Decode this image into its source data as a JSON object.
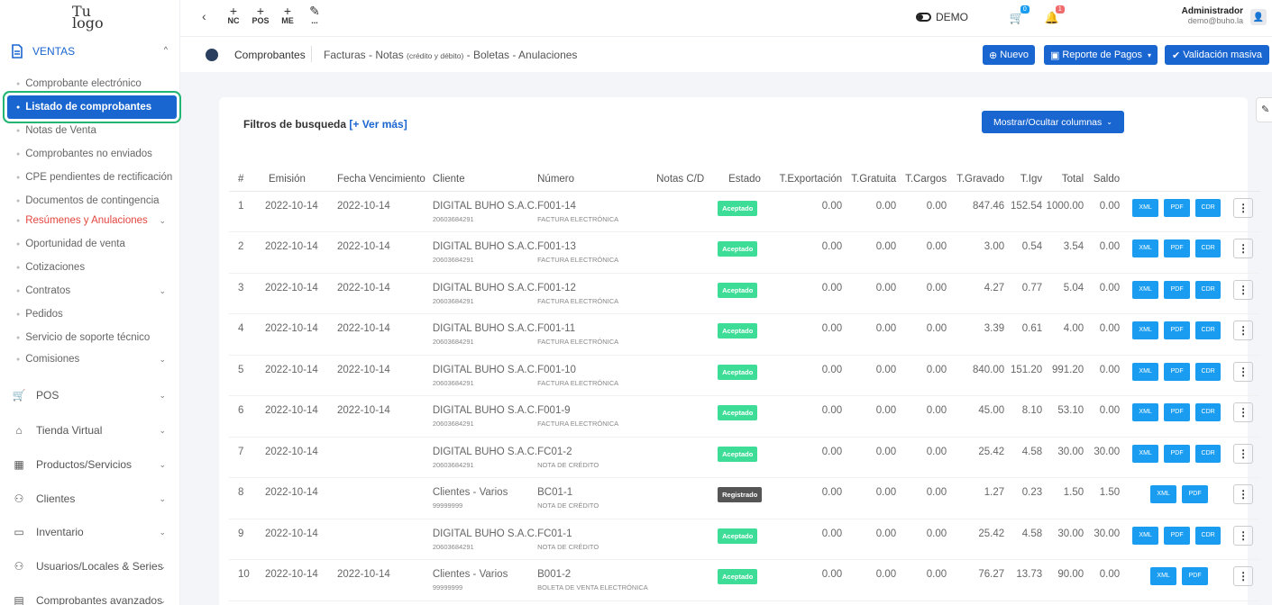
{
  "logo": {
    "line1": "Tu",
    "line2": "logo"
  },
  "sidebar": {
    "ventas_label": "VENTAS",
    "subitems": [
      {
        "label": "Comprobante electrónico",
        "active": false
      },
      {
        "label": "Listado de comprobantes",
        "active": true
      },
      {
        "label": "Notas de Venta",
        "active": false
      },
      {
        "label": "Comprobantes no enviados",
        "active": false
      },
      {
        "label": "CPE pendientes de rectificación",
        "active": false
      },
      {
        "label": "Documentos de contingencia",
        "active": false
      },
      {
        "label": "Resúmenes y Anulaciones",
        "active": false
      },
      {
        "label": "Oportunidad de venta",
        "active": false
      },
      {
        "label": "Cotizaciones",
        "active": false
      },
      {
        "label": "Contratos",
        "active": false
      },
      {
        "label": "Pedidos",
        "active": false
      },
      {
        "label": "Servicio de soporte técnico",
        "active": false
      },
      {
        "label": "Comisiones",
        "active": false
      }
    ],
    "nav": [
      "POS",
      "Tienda Virtual",
      "Productos/Servicios",
      "Clientes",
      "Inventario",
      "Usuarios/Locales & Series",
      "Comprobantes avanzados"
    ]
  },
  "topbar": {
    "quick": [
      "NC",
      "POS",
      "ME",
      "..."
    ],
    "demo": "DEMO",
    "cart_count": "0",
    "bell_count": "1",
    "user_name": "Administrador",
    "user_email": "demo@buho.la"
  },
  "breadcrumb": {
    "section": "Comprobantes",
    "path_a": "Facturas - Notas ",
    "path_small": "(crédito y débito)",
    "path_b": " - Boletas - Anulaciones"
  },
  "buttons": {
    "nuevo": "Nuevo",
    "reporte": "Reporte de Pagos",
    "validacion": "Validación masiva",
    "mostrar": "Mostrar/Ocultar columnas"
  },
  "filters": {
    "label": "Filtros de busqueda ",
    "more": "[+ Ver más]"
  },
  "table": {
    "headers": [
      "#",
      "Emisión",
      "Fecha Vencimiento",
      "Cliente",
      "Número",
      "Notas C/D",
      "Estado",
      "T.Exportación",
      "T.Gratuita",
      "T.Cargos",
      "T.Gravado",
      "T.Igv",
      "Total",
      "Saldo"
    ],
    "rows": [
      {
        "n": "1",
        "em": "2022-10-14",
        "ven": "2022-10-14",
        "cli": "DIGITAL BUHO S.A.C.",
        "doc": "20603684291",
        "num": "F001-14",
        "tipo": "FACTURA ELECTRÓNICA",
        "estado": "Aceptado",
        "exp": "0.00",
        "grat": "0.00",
        "car": "0.00",
        "grav": "847.46",
        "igv": "152.54",
        "tot": "1000.00",
        "sal": "0.00",
        "cdr": true
      },
      {
        "n": "2",
        "em": "2022-10-14",
        "ven": "2022-10-14",
        "cli": "DIGITAL BUHO S.A.C.",
        "doc": "20603684291",
        "num": "F001-13",
        "tipo": "FACTURA ELECTRÓNICA",
        "estado": "Aceptado",
        "exp": "0.00",
        "grat": "0.00",
        "car": "0.00",
        "grav": "3.00",
        "igv": "0.54",
        "tot": "3.54",
        "sal": "0.00",
        "cdr": true
      },
      {
        "n": "3",
        "em": "2022-10-14",
        "ven": "2022-10-14",
        "cli": "DIGITAL BUHO S.A.C.",
        "doc": "20603684291",
        "num": "F001-12",
        "tipo": "FACTURA ELECTRÓNICA",
        "estado": "Aceptado",
        "exp": "0.00",
        "grat": "0.00",
        "car": "0.00",
        "grav": "4.27",
        "igv": "0.77",
        "tot": "5.04",
        "sal": "0.00",
        "cdr": true
      },
      {
        "n": "4",
        "em": "2022-10-14",
        "ven": "2022-10-14",
        "cli": "DIGITAL BUHO S.A.C.",
        "doc": "20603684291",
        "num": "F001-11",
        "tipo": "FACTURA ELECTRÓNICA",
        "estado": "Aceptado",
        "exp": "0.00",
        "grat": "0.00",
        "car": "0.00",
        "grav": "3.39",
        "igv": "0.61",
        "tot": "4.00",
        "sal": "0.00",
        "cdr": true
      },
      {
        "n": "5",
        "em": "2022-10-14",
        "ven": "2022-10-14",
        "cli": "DIGITAL BUHO S.A.C.",
        "doc": "20603684291",
        "num": "F001-10",
        "tipo": "FACTURA ELECTRÓNICA",
        "estado": "Aceptado",
        "exp": "0.00",
        "grat": "0.00",
        "car": "0.00",
        "grav": "840.00",
        "igv": "151.20",
        "tot": "991.20",
        "sal": "0.00",
        "cdr": true
      },
      {
        "n": "6",
        "em": "2022-10-14",
        "ven": "2022-10-14",
        "cli": "DIGITAL BUHO S.A.C.",
        "doc": "20603684291",
        "num": "F001-9",
        "tipo": "FACTURA ELECTRÓNICA",
        "estado": "Aceptado",
        "exp": "0.00",
        "grat": "0.00",
        "car": "0.00",
        "grav": "45.00",
        "igv": "8.10",
        "tot": "53.10",
        "sal": "0.00",
        "cdr": true
      },
      {
        "n": "7",
        "em": "2022-10-14",
        "ven": "",
        "cli": "DIGITAL BUHO S.A.C.",
        "doc": "20603684291",
        "num": "FC01-2",
        "tipo": "NOTA DE CRÉDITO",
        "estado": "Aceptado",
        "exp": "0.00",
        "grat": "0.00",
        "car": "0.00",
        "grav": "25.42",
        "igv": "4.58",
        "tot": "30.00",
        "sal": "30.00",
        "cdr": true
      },
      {
        "n": "8",
        "em": "2022-10-14",
        "ven": "",
        "cli": "Clientes - Varios",
        "doc": "99999999",
        "num": "BC01-1",
        "tipo": "NOTA DE CRÉDITO",
        "estado": "Registrado",
        "exp": "0.00",
        "grat": "0.00",
        "car": "0.00",
        "grav": "1.27",
        "igv": "0.23",
        "tot": "1.50",
        "sal": "1.50",
        "cdr": false
      },
      {
        "n": "9",
        "em": "2022-10-14",
        "ven": "",
        "cli": "DIGITAL BUHO S.A.C.",
        "doc": "20603684291",
        "num": "FC01-1",
        "tipo": "NOTA DE CRÉDITO",
        "estado": "Aceptado",
        "exp": "0.00",
        "grat": "0.00",
        "car": "0.00",
        "grav": "25.42",
        "igv": "4.58",
        "tot": "30.00",
        "sal": "30.00",
        "cdr": true
      },
      {
        "n": "10",
        "em": "2022-10-14",
        "ven": "2022-10-14",
        "cli": "Clientes - Varios",
        "doc": "99999999",
        "num": "B001-2",
        "tipo": "BOLETA DE VENTA ELECTRÓNICA",
        "estado": "Aceptado",
        "exp": "0.00",
        "grat": "0.00",
        "car": "0.00",
        "grav": "76.27",
        "igv": "13.73",
        "tot": "90.00",
        "sal": "0.00",
        "cdr": false
      }
    ],
    "action_labels": {
      "xml": "XML",
      "pdf": "PDF",
      "cdr": "CDR",
      "more": "⋮"
    }
  },
  "colors": {
    "primary": "#1a66d0",
    "accepted": "#3ddc97",
    "registered": "#555555",
    "file_btn": "#1a9df0",
    "danger": "#e2463f",
    "highlight": "#22b573"
  }
}
